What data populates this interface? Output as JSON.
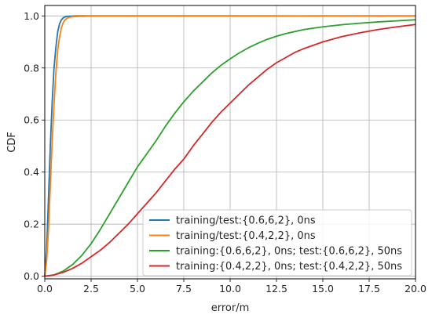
{
  "chart_data": {
    "type": "line",
    "title": "",
    "xlabel": "error/m",
    "ylabel": "CDF",
    "xlim": [
      0,
      20
    ],
    "ylim": [
      -0.01,
      1.04
    ],
    "xticks": [
      0,
      2.5,
      5,
      7.5,
      10,
      12.5,
      15,
      17.5,
      20
    ],
    "xtick_labels": [
      "0.0",
      "2.5",
      "5.0",
      "7.5",
      "10.0",
      "12.5",
      "15.0",
      "17.5",
      "20.0"
    ],
    "yticks": [
      0,
      0.2,
      0.4,
      0.6,
      0.8,
      1.0
    ],
    "ytick_labels": [
      "0.0",
      "0.2",
      "0.4",
      "0.6",
      "0.8",
      "1.0"
    ],
    "grid": true,
    "legend_position": "bottom-right",
    "series": [
      {
        "name": "training/test:{0.6,6,2}, 0ns",
        "color": "#1f77b4",
        "x": [
          0,
          0.1,
          0.2,
          0.3,
          0.4,
          0.5,
          0.6,
          0.7,
          0.8,
          0.9,
          1.0,
          1.1,
          1.2,
          1.4,
          1.7,
          2.5,
          5,
          10,
          15,
          20
        ],
        "y": [
          0,
          0.1,
          0.3,
          0.5,
          0.67,
          0.8,
          0.88,
          0.94,
          0.97,
          0.985,
          0.993,
          0.996,
          0.998,
          0.999,
          1.0,
          1.0,
          1.0,
          1.0,
          1.0,
          1.0
        ]
      },
      {
        "name": "training/test:{0.4,2,2}, 0ns",
        "color": "#ff7f0e",
        "x": [
          0,
          0.1,
          0.2,
          0.3,
          0.4,
          0.5,
          0.6,
          0.7,
          0.8,
          0.9,
          1.0,
          1.1,
          1.2,
          1.3,
          1.5,
          1.8,
          2.5,
          5,
          10,
          15,
          20
        ],
        "y": [
          0,
          0.06,
          0.18,
          0.35,
          0.52,
          0.66,
          0.78,
          0.87,
          0.92,
          0.955,
          0.975,
          0.985,
          0.991,
          0.994,
          0.997,
          0.998,
          0.999,
          0.999,
          0.999,
          1.0,
          1.0
        ]
      },
      {
        "name": "training:{0.6,6,2}, 0ns; test:{0.6,6,2}, 50ns",
        "color": "#2ca02c",
        "x": [
          0,
          0.5,
          1,
          1.5,
          2,
          2.5,
          3,
          3.5,
          4,
          4.5,
          5,
          5.5,
          6,
          6.5,
          7,
          7.5,
          8,
          8.5,
          9,
          9.5,
          10,
          10.5,
          11,
          11.5,
          12,
          12.5,
          13,
          14,
          15,
          16,
          17,
          18,
          19,
          20
        ],
        "y": [
          0,
          0.005,
          0.02,
          0.045,
          0.08,
          0.125,
          0.18,
          0.24,
          0.3,
          0.36,
          0.42,
          0.47,
          0.52,
          0.575,
          0.625,
          0.67,
          0.71,
          0.745,
          0.78,
          0.81,
          0.835,
          0.858,
          0.878,
          0.895,
          0.91,
          0.922,
          0.932,
          0.948,
          0.958,
          0.966,
          0.972,
          0.977,
          0.981,
          0.985
        ]
      },
      {
        "name": "training:{0.4,2,2}, 0ns; test:{0.4,2,2}, 50ns",
        "color": "#d62728",
        "x": [
          0,
          0.5,
          1,
          1.5,
          2,
          2.5,
          3,
          3.5,
          4,
          4.5,
          5,
          5.5,
          6,
          6.5,
          7,
          7.5,
          8,
          8.5,
          9,
          9.5,
          10,
          10.5,
          11,
          11.5,
          12,
          12.5,
          13,
          13.5,
          14,
          15,
          16,
          17,
          18,
          19,
          20
        ],
        "y": [
          0,
          0.005,
          0.015,
          0.03,
          0.05,
          0.075,
          0.1,
          0.13,
          0.165,
          0.2,
          0.24,
          0.28,
          0.32,
          0.365,
          0.41,
          0.45,
          0.5,
          0.545,
          0.59,
          0.63,
          0.665,
          0.7,
          0.735,
          0.765,
          0.795,
          0.82,
          0.84,
          0.86,
          0.875,
          0.9,
          0.92,
          0.935,
          0.948,
          0.958,
          0.967
        ]
      }
    ]
  }
}
